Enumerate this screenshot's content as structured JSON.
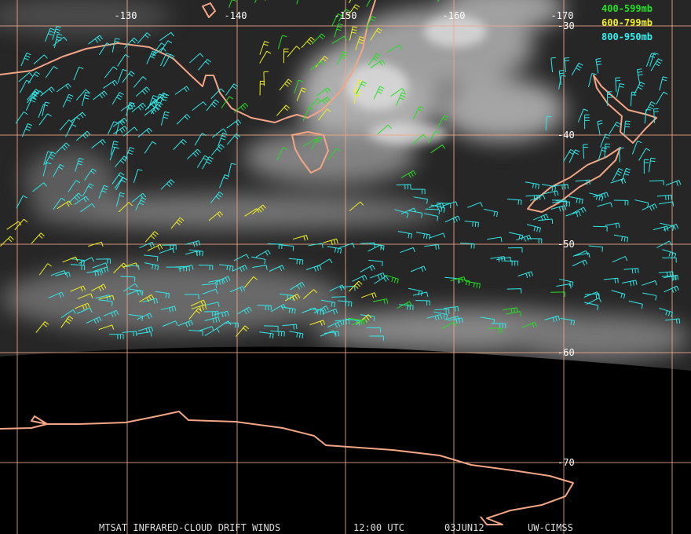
{
  "longitude_labels": [
    "-130",
    "-140",
    "-150",
    "-160",
    "-170"
  ],
  "latitude_labels": [
    "-30",
    "-40",
    "-50",
    "-60",
    "-70"
  ],
  "legend": [
    "400-599mb",
    "600-799mb",
    "800-950mb"
  ],
  "footer": [
    "MTSAT INFRARED-CLOUD DRIFT WINDS",
    "12:00 UTC",
    "03JUN12",
    "UW-CIMSS"
  ]
}
